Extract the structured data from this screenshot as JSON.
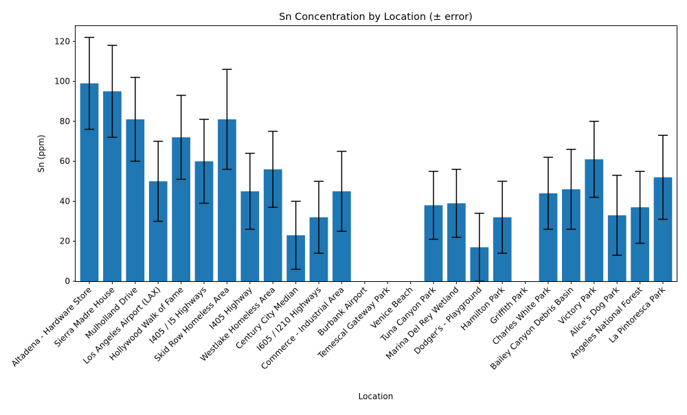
{
  "chart_data": {
    "type": "bar",
    "title": "Sn Concentration by Location (± error)",
    "xlabel": "Location",
    "ylabel": "Sn (ppm)",
    "ylim": [
      0,
      128
    ],
    "yticks": [
      0,
      20,
      40,
      60,
      80,
      100,
      120
    ],
    "grid": false,
    "bar_color": "#1f77b4",
    "error_color": "#000000",
    "categories": [
      "Altadena - Hardware Store",
      "Sierra Madre House",
      "Mulholland Drive",
      "Los Angeles Airport (LAX)",
      "Hollywood Walk of Fame",
      "I405 / I5 Highways",
      "Skid Row Homeless Area",
      "I405 Highway",
      "Westlake Homeless Area",
      "Century City Median",
      "I605 / I210 Highways",
      "Commerce - Industrial Area",
      "Burbank Airport",
      "Temescal Gateway Park",
      "Venice Beach",
      "Tuna Canyon Park",
      "Marina Del Rey Wetland",
      "Dodger's - Playground",
      "Hamilton Park",
      "Griffith Park",
      "Charles White Park",
      "Bailey Canyon Debris Basin",
      "Victory Park",
      "Alice's Dog Park",
      "Angeles National Forest",
      "La Pintoresca Park"
    ],
    "values": [
      99,
      95,
      81,
      50,
      72,
      60,
      81,
      45,
      56,
      23,
      32,
      45,
      null,
      null,
      null,
      38,
      39,
      17,
      32,
      null,
      44,
      46,
      61,
      33,
      37,
      52
    ],
    "errors": [
      23,
      23,
      21,
      20,
      21,
      21,
      25,
      19,
      19,
      17,
      18,
      20,
      null,
      null,
      null,
      17,
      17,
      17,
      18,
      null,
      18,
      20,
      19,
      20,
      18,
      21
    ]
  }
}
